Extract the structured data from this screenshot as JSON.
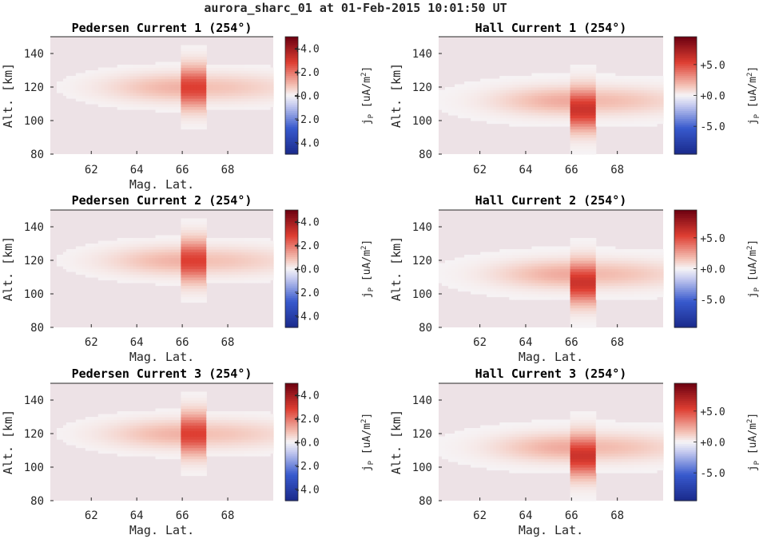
{
  "figure_title": "aurora_sharc_01 at 01-Feb-2015 10:01:50 UT",
  "colors": {
    "cmap_low": "#1a2a8c",
    "cmap_mid": "#f6f4f6",
    "cmap_high": "#6b0010",
    "background_field": "#ede2e6"
  },
  "chart_data": [
    {
      "type": "heatmap",
      "title": "Pedersen Current 1 (254°)",
      "xlabel": "Mag. Lat.",
      "ylabel": "Alt. [km]",
      "xlim": [
        60.2,
        70
      ],
      "ylim": [
        80,
        150
      ],
      "xticks": [
        62,
        64,
        66,
        68
      ],
      "yticks": [
        80,
        100,
        120,
        140
      ],
      "colorbar": {
        "label": "j_P [uA/m^2]",
        "label_main": "j",
        "label_sub": "P",
        "label_unit": "[uA/m",
        "label_sup": "2",
        "label_end": "]",
        "range": [
          -5,
          5
        ],
        "ticks": [
          4,
          2,
          0,
          -2,
          -4
        ],
        "tick_labels": [
          "+4.0",
          "+2.0",
          "+0.0",
          "-2.0",
          "-4.0"
        ]
      },
      "field": {
        "peak_value": 2.8,
        "peak_mlat": 66.4,
        "peak_alt": 120,
        "arc_mlat_range": [
          65.9,
          67.0
        ],
        "band_alt": 120,
        "band_strength": 1.0
      }
    },
    {
      "type": "heatmap",
      "title": "Hall Current 1 (254°)",
      "xlabel": "",
      "ylabel": "Alt. [km]",
      "xlim": [
        60.2,
        70
      ],
      "ylim": [
        80,
        150
      ],
      "xticks": [
        62,
        64,
        66,
        68
      ],
      "yticks": [
        80,
        100,
        120,
        140
      ],
      "colorbar": {
        "label": "j_P [uA/m^2]",
        "label_main": "j",
        "label_sub": "P",
        "label_unit": "[uA/m",
        "label_sup": "2",
        "label_end": "]",
        "range": [
          -9.5,
          9.5
        ],
        "ticks": [
          5,
          0,
          -5
        ],
        "tick_labels": [
          "+5.0",
          "+0.0",
          "-5.0"
        ]
      },
      "field": {
        "peak_value": 6.0,
        "peak_mlat": 66.4,
        "peak_alt": 107,
        "arc_mlat_range": [
          65.9,
          67.0
        ],
        "band_alt": 112,
        "band_strength": 1.3
      }
    },
    {
      "type": "heatmap",
      "title": "Pedersen Current 2 (254°)",
      "xlabel": "Mag. Lat.",
      "ylabel": "Alt. [km]",
      "xlim": [
        60.2,
        70
      ],
      "ylim": [
        80,
        150
      ],
      "xticks": [
        62,
        64,
        66,
        68
      ],
      "yticks": [
        80,
        100,
        120,
        140
      ],
      "colorbar": {
        "label": "j_P [uA/m^2]",
        "label_main": "j",
        "label_sub": "P",
        "label_unit": "[uA/m",
        "label_sup": "2",
        "label_end": "]",
        "range": [
          -5,
          5
        ],
        "ticks": [
          4,
          2,
          0,
          -2,
          -4
        ],
        "tick_labels": [
          "+4.0",
          "+2.0",
          "+0.0",
          "-2.0",
          "-4.0"
        ]
      },
      "field": {
        "peak_value": 2.8,
        "peak_mlat": 66.4,
        "peak_alt": 120,
        "arc_mlat_range": [
          65.9,
          67.0
        ],
        "band_alt": 120,
        "band_strength": 1.0
      }
    },
    {
      "type": "heatmap",
      "title": "Hall Current 2 (254°)",
      "xlabel": "Mag. Lat.",
      "ylabel": "Alt. [km]",
      "xlim": [
        60.2,
        70
      ],
      "ylim": [
        80,
        150
      ],
      "xticks": [
        62,
        64,
        66,
        68
      ],
      "yticks": [
        80,
        100,
        120,
        140
      ],
      "colorbar": {
        "label": "j_P [uA/m^2]",
        "label_main": "j",
        "label_sub": "P",
        "label_unit": "[uA/m",
        "label_sup": "2",
        "label_end": "]",
        "range": [
          -9.5,
          9.5
        ],
        "ticks": [
          5,
          0,
          -5
        ],
        "tick_labels": [
          "+5.0",
          "+0.0",
          "-5.0"
        ]
      },
      "field": {
        "peak_value": 6.0,
        "peak_mlat": 66.4,
        "peak_alt": 107,
        "arc_mlat_range": [
          65.9,
          67.0
        ],
        "band_alt": 112,
        "band_strength": 1.3
      }
    },
    {
      "type": "heatmap",
      "title": "Pedersen Current 3 (254°)",
      "xlabel": "Mag. Lat.",
      "ylabel": "Alt. [km]",
      "xlim": [
        60.2,
        70
      ],
      "ylim": [
        80,
        150
      ],
      "xticks": [
        62,
        64,
        66,
        68
      ],
      "yticks": [
        80,
        100,
        120,
        140
      ],
      "colorbar": {
        "label": "j_P [uA/m^2]",
        "label_main": "j",
        "label_sub": "P",
        "label_unit": "[uA/m",
        "label_sup": "2",
        "label_end": "]",
        "range": [
          -5,
          5
        ],
        "ticks": [
          4,
          2,
          0,
          -2,
          -4
        ],
        "tick_labels": [
          "+4.0",
          "+2.0",
          "+0.0",
          "-2.0",
          "-4.0"
        ]
      },
      "field": {
        "peak_value": 2.8,
        "peak_mlat": 66.4,
        "peak_alt": 120,
        "arc_mlat_range": [
          65.9,
          67.0
        ],
        "band_alt": 120,
        "band_strength": 1.0
      }
    },
    {
      "type": "heatmap",
      "title": "Hall Current 3 (254°)",
      "xlabel": "Mag. Lat.",
      "ylabel": "Alt. [km]",
      "xlim": [
        60.2,
        70
      ],
      "ylim": [
        80,
        150
      ],
      "xticks": [
        62,
        64,
        66,
        68
      ],
      "yticks": [
        80,
        100,
        120,
        140
      ],
      "colorbar": {
        "label": "j_P [uA/m^2]",
        "label_main": "j",
        "label_sub": "P",
        "label_unit": "[uA/m",
        "label_sup": "2",
        "label_end": "]",
        "range": [
          -9.5,
          9.5
        ],
        "ticks": [
          5,
          0,
          -5
        ],
        "tick_labels": [
          "+5.0",
          "+0.0",
          "-5.0"
        ]
      },
      "field": {
        "peak_value": 6.0,
        "peak_mlat": 66.4,
        "peak_alt": 107,
        "arc_mlat_range": [
          65.9,
          67.0
        ],
        "band_alt": 112,
        "band_strength": 1.3
      }
    }
  ]
}
